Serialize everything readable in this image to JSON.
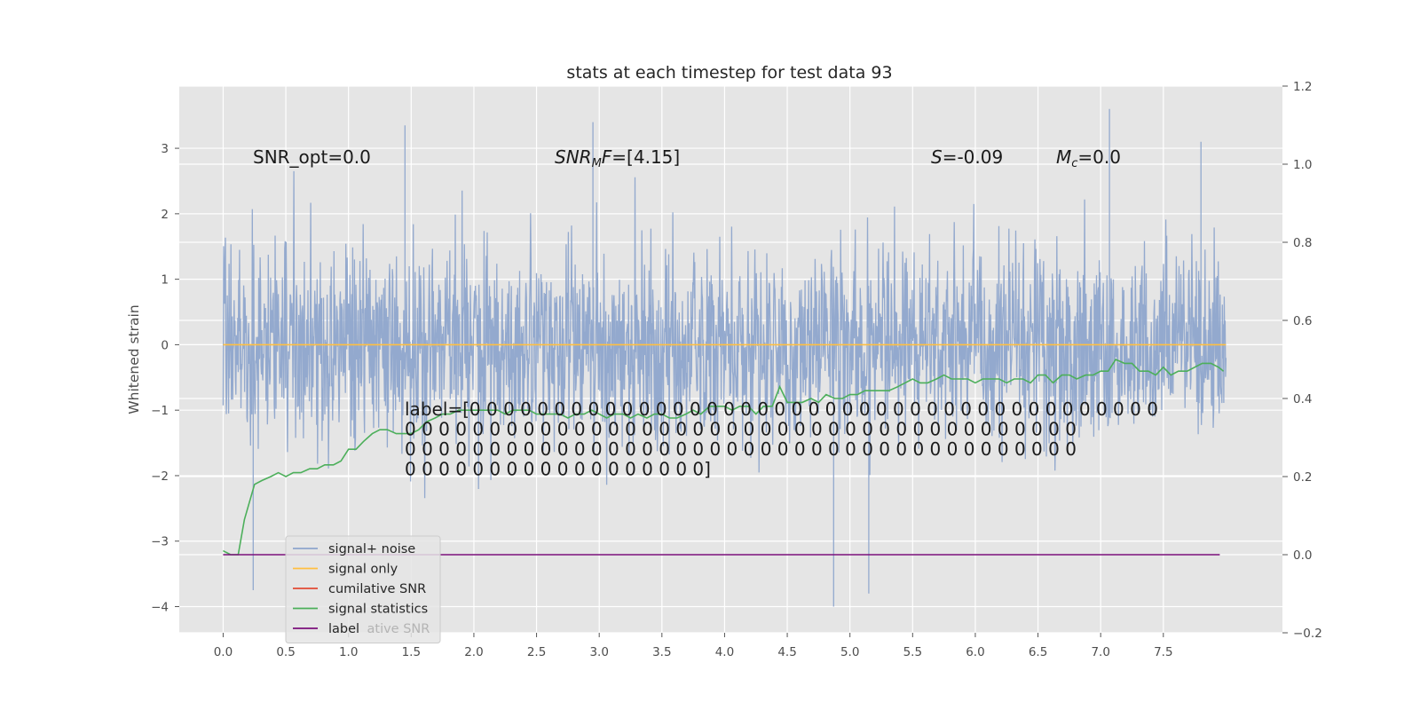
{
  "chart_data": {
    "type": "line",
    "title": "stats at each timestep for test data 93",
    "ylabel": "Whitened strain",
    "y2label": "",
    "xlim": [
      -0.35,
      8.45
    ],
    "ylim": [
      -4.4,
      3.95
    ],
    "y2lim": [
      -0.2,
      1.2
    ],
    "x_ticks": [
      "0.0",
      "0.5",
      "1.0",
      "1.5",
      "2.0",
      "2.5",
      "3.0",
      "3.5",
      "4.0",
      "4.5",
      "5.0",
      "5.5",
      "6.0",
      "6.5",
      "7.0",
      "7.5"
    ],
    "y_ticks": [
      "3",
      "2",
      "1",
      "0",
      "−1",
      "−2",
      "−3",
      "−4"
    ],
    "y2_ticks": [
      "1.2",
      "1.0",
      "0.8",
      "0.6",
      "0.4",
      "0.2",
      "0.0",
      "−0.2"
    ],
    "grid": true,
    "legend_position": "lower-left",
    "colors": {
      "background": "#e5e5e5",
      "grid": "#ffffff",
      "signal_noise": "#8ea5cc",
      "signal_only": "#ffbf40",
      "cumulative_snr": "#e24a33",
      "signal_statistics": "#4caf5a",
      "label": "#7b0f7b"
    },
    "annotations": {
      "snr_opt": "SNR_opt=0.0",
      "snr_mf_prefix": "SNR",
      "snr_mf_sub": "M",
      "snr_mf_suffix": "F=[4.15]",
      "s_prefix": "S",
      "s_suffix": "=-0.09",
      "mc_prefix": "M",
      "mc_sub": "c",
      "mc_suffix": "=0.0",
      "label_lines": [
        "label=[0 0 0 0 0 0 0 0 0 0 0 0 0 0 0 0 0 0 0 0 0 0 0 0 0 0 0 0 0 0 0 0 0 0 0 0 0 0 0 0 0",
        " 0 0 0 0 0 0 0 0 0 0 0 0 0 0 0 0 0 0 0 0 0 0 0 0 0 0 0 0 0 0 0 0 0 0 0 0 0 0 0 0",
        " 0 0 0 0 0 0 0 0 0 0 0 0 0 0 0 0 0 0 0 0 0 0 0 0 0 0 0 0 0 0 0 0 0 0 0 0 0 0 0 0",
        " 0 0 0 0 0 0 0 0 0 0 0 0 0 0 0 0 0 0]"
      ]
    },
    "legend": [
      {
        "name": "signal+ noise",
        "color": "#8ea5cc"
      },
      {
        "name": "signal only",
        "color": "#ffbf40"
      },
      {
        "name": "cumilative SNR",
        "color": "#e24a33"
      },
      {
        "name": "signal statistics",
        "color": "#4caf5a"
      },
      {
        "name": "label",
        "color": "#7b0f7b",
        "ghost_text": "ative SNR"
      }
    ],
    "noise_envelope": {
      "description_x": [
        0.0,
        8.0
      ],
      "typical_range": [
        -2.5,
        2.5
      ],
      "notable_spikes": [
        {
          "x": 0.24,
          "y": -3.75
        },
        {
          "x": 1.45,
          "y": 3.35
        },
        {
          "x": 2.95,
          "y": 3.4
        },
        {
          "x": 4.87,
          "y": -4.0
        },
        {
          "x": 5.15,
          "y": -3.8
        },
        {
          "x": 7.07,
          "y": 3.6
        },
        {
          "x": 7.8,
          "y": 3.1
        }
      ]
    },
    "series": [
      {
        "name": "signal only",
        "axis": "left",
        "x": [
          0.0,
          8.0
        ],
        "y": [
          0.0,
          0.0
        ]
      },
      {
        "name": "signal statistics",
        "axis": "right",
        "x": [
          0.0,
          0.06,
          0.12,
          0.17,
          0.25,
          0.31,
          0.38,
          0.44,
          0.5,
          0.56,
          0.62,
          0.69,
          0.75,
          0.81,
          0.88,
          0.94,
          1.0,
          1.06,
          1.12,
          1.19,
          1.25,
          1.31,
          1.38,
          1.44,
          1.5,
          1.56,
          1.62,
          1.69,
          1.75,
          1.81,
          1.88,
          1.94,
          2.0,
          2.06,
          2.12,
          2.19,
          2.25,
          2.31,
          2.38,
          2.44,
          2.5,
          2.56,
          2.62,
          2.69,
          2.75,
          2.81,
          2.88,
          2.94,
          3.0,
          3.06,
          3.12,
          3.19,
          3.25,
          3.31,
          3.38,
          3.44,
          3.5,
          3.56,
          3.62,
          3.69,
          3.75,
          3.81,
          3.88,
          3.94,
          4.0,
          4.06,
          4.12,
          4.19,
          4.25,
          4.31,
          4.38,
          4.44,
          4.5,
          4.56,
          4.62,
          4.69,
          4.75,
          4.81,
          4.88,
          4.94,
          5.0,
          5.06,
          5.12,
          5.19,
          5.25,
          5.31,
          5.38,
          5.44,
          5.5,
          5.56,
          5.62,
          5.69,
          5.75,
          5.81,
          5.88,
          5.94,
          6.0,
          6.06,
          6.12,
          6.19,
          6.25,
          6.31,
          6.38,
          6.44,
          6.5,
          6.56,
          6.62,
          6.69,
          6.75,
          6.81,
          6.88,
          6.94,
          7.0,
          7.06,
          7.12,
          7.19,
          7.25,
          7.31,
          7.38,
          7.44,
          7.5,
          7.56,
          7.62,
          7.69,
          7.75,
          7.81,
          7.88,
          7.94,
          7.98
        ],
        "y": [
          0.01,
          0.0,
          0.0,
          0.09,
          0.18,
          0.19,
          0.2,
          0.21,
          0.2,
          0.21,
          0.21,
          0.22,
          0.22,
          0.23,
          0.23,
          0.24,
          0.27,
          0.27,
          0.29,
          0.31,
          0.32,
          0.32,
          0.31,
          0.31,
          0.31,
          0.32,
          0.34,
          0.35,
          0.36,
          0.36,
          0.37,
          0.37,
          0.37,
          0.37,
          0.37,
          0.37,
          0.36,
          0.37,
          0.37,
          0.37,
          0.36,
          0.36,
          0.36,
          0.36,
          0.35,
          0.36,
          0.36,
          0.37,
          0.36,
          0.35,
          0.36,
          0.36,
          0.35,
          0.36,
          0.35,
          0.36,
          0.36,
          0.35,
          0.35,
          0.36,
          0.37,
          0.36,
          0.38,
          0.38,
          0.38,
          0.37,
          0.38,
          0.38,
          0.36,
          0.38,
          0.38,
          0.43,
          0.39,
          0.39,
          0.39,
          0.4,
          0.39,
          0.41,
          0.4,
          0.4,
          0.41,
          0.41,
          0.42,
          0.42,
          0.42,
          0.42,
          0.43,
          0.44,
          0.45,
          0.44,
          0.44,
          0.45,
          0.46,
          0.45,
          0.45,
          0.45,
          0.44,
          0.45,
          0.45,
          0.45,
          0.44,
          0.45,
          0.45,
          0.44,
          0.46,
          0.46,
          0.44,
          0.46,
          0.46,
          0.45,
          0.46,
          0.46,
          0.47,
          0.47,
          0.5,
          0.49,
          0.49,
          0.47,
          0.47,
          0.46,
          0.48,
          0.46,
          0.47,
          0.47,
          0.48,
          0.49,
          0.49,
          0.48,
          0.47
        ]
      },
      {
        "name": "label",
        "axis": "right",
        "x": [
          0.0,
          7.95
        ],
        "y": [
          0.0,
          0.0
        ]
      }
    ]
  }
}
